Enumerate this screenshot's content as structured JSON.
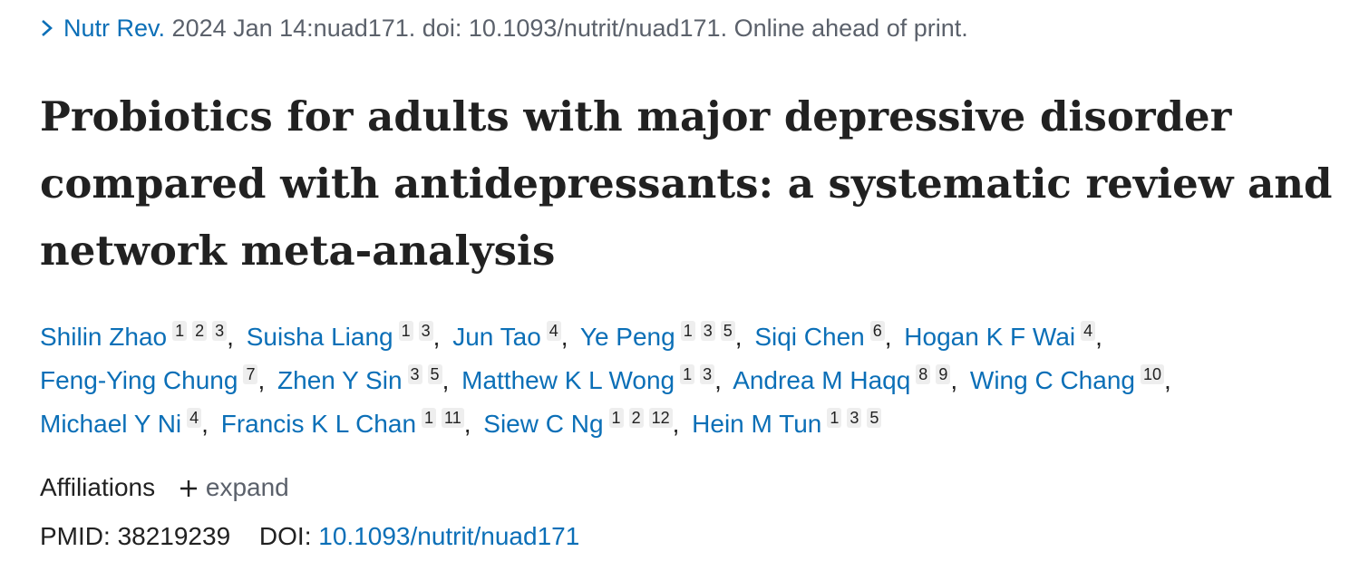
{
  "citation": {
    "journal": "Nutr Rev.",
    "details": "2024 Jan 14:nuad171. doi: 10.1093/nutrit/nuad171. Online ahead of print."
  },
  "title": "Probiotics for adults with major depressive disorder compared with antidepressants: a systematic review and network meta-analysis",
  "separator": ",",
  "authors": [
    {
      "name": "Shilin Zhao",
      "affiliations": [
        "1",
        "2",
        "3"
      ]
    },
    {
      "name": "Suisha Liang",
      "affiliations": [
        "1",
        "3"
      ]
    },
    {
      "name": "Jun Tao",
      "affiliations": [
        "4"
      ]
    },
    {
      "name": "Ye Peng",
      "affiliations": [
        "1",
        "3",
        "5"
      ]
    },
    {
      "name": "Siqi Chen",
      "affiliations": [
        "6"
      ]
    },
    {
      "name": "Hogan K F Wai",
      "affiliations": [
        "4"
      ]
    },
    {
      "name": "Feng-Ying Chung",
      "affiliations": [
        "7"
      ]
    },
    {
      "name": "Zhen Y Sin",
      "affiliations": [
        "3",
        "5"
      ]
    },
    {
      "name": "Matthew K L Wong",
      "affiliations": [
        "1",
        "3"
      ]
    },
    {
      "name": "Andrea M Haqq",
      "affiliations": [
        "8",
        "9"
      ]
    },
    {
      "name": "Wing C Chang",
      "affiliations": [
        "10"
      ]
    },
    {
      "name": "Michael Y Ni",
      "affiliations": [
        "4"
      ]
    },
    {
      "name": "Francis K L Chan",
      "affiliations": [
        "1",
        "11"
      ]
    },
    {
      "name": "Siew C Ng",
      "affiliations": [
        "1",
        "2",
        "12"
      ]
    },
    {
      "name": "Hein M Tun",
      "affiliations": [
        "1",
        "3",
        "5"
      ]
    }
  ],
  "affiliations": {
    "label": "Affiliations",
    "toggle": "expand"
  },
  "identifiers": {
    "pmid_label": "PMID:",
    "pmid": "38219239",
    "doi_label": "DOI:",
    "doi": "10.1093/nutrit/nuad171"
  }
}
